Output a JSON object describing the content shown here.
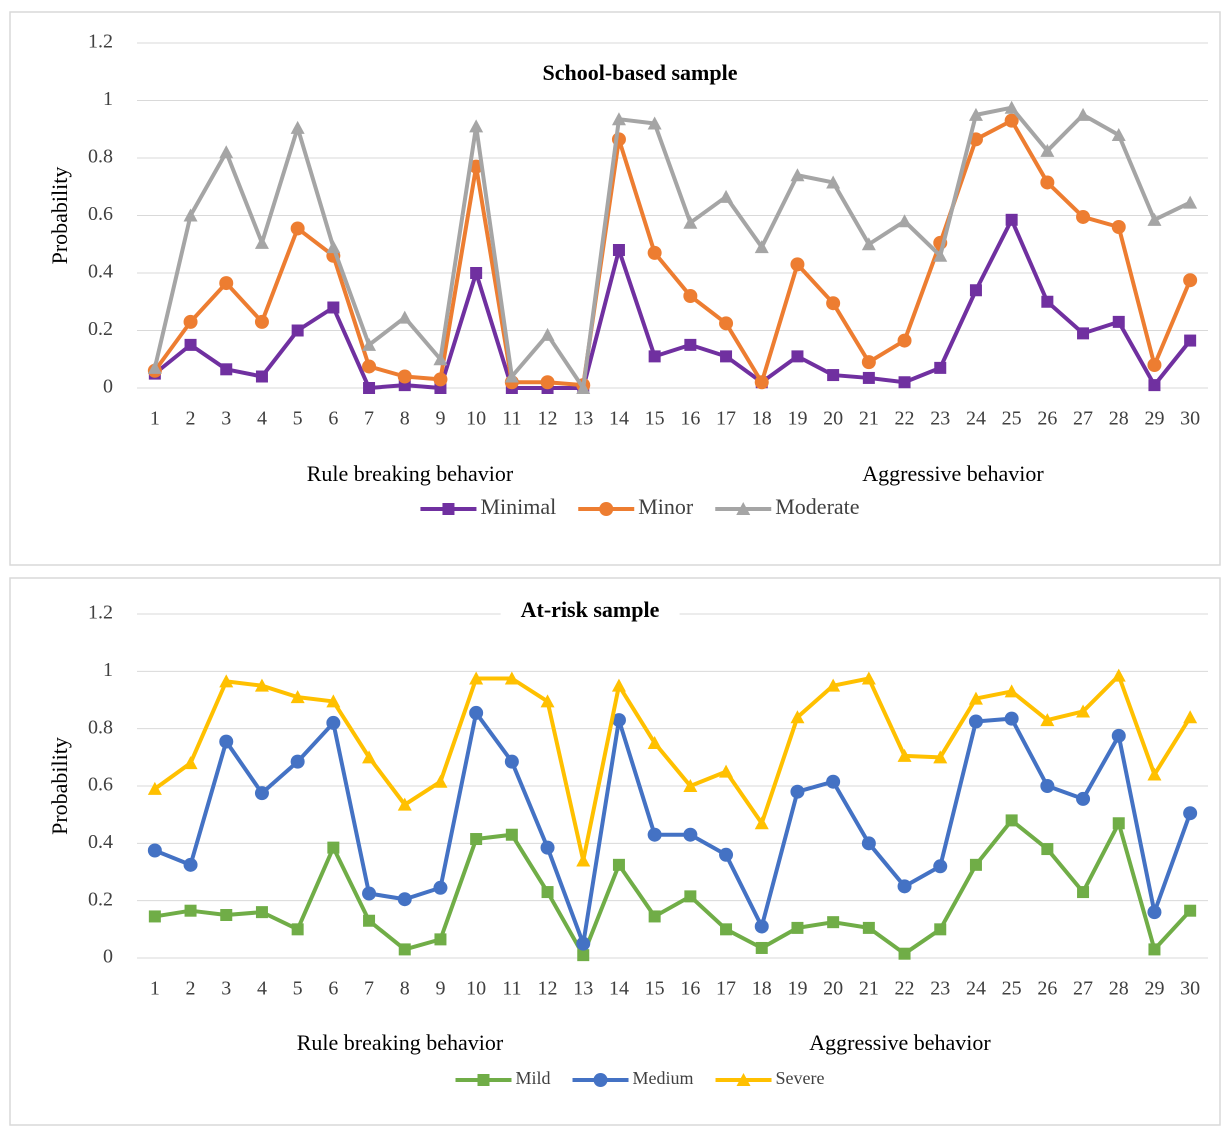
{
  "chart_data": [
    {
      "type": "line",
      "title": "School-based sample",
      "y_label": "Probability",
      "annotations": [
        "Rule breaking behavior",
        "Aggressive behavior"
      ],
      "categories": [
        "1",
        "2",
        "3",
        "4",
        "5",
        "6",
        "7",
        "8",
        "9",
        "10",
        "11",
        "12",
        "13",
        "14",
        "15",
        "16",
        "17",
        "18",
        "19",
        "20",
        "21",
        "22",
        "23",
        "24",
        "25",
        "26",
        "27",
        "28",
        "29",
        "30"
      ],
      "ylim": [
        0,
        1.2
      ],
      "yticks": [
        0,
        0.2,
        0.4,
        0.6,
        0.8,
        1,
        1.2
      ],
      "grid": true,
      "legend": "bottom",
      "series": [
        {
          "name": "Minimal",
          "color": "#7030a0",
          "marker": "square",
          "values": [
            0.05,
            0.15,
            0.065,
            0.04,
            0.2,
            0.28,
            0.0,
            0.01,
            0.0,
            0.4,
            0.0,
            0.0,
            0.0,
            0.48,
            0.11,
            0.15,
            0.11,
            0.02,
            0.11,
            0.045,
            0.035,
            0.02,
            0.07,
            0.34,
            0.585,
            0.3,
            0.19,
            0.23,
            0.01,
            0.165
          ]
        },
        {
          "name": "Minor",
          "color": "#ed7d31",
          "marker": "circle",
          "values": [
            0.06,
            0.23,
            0.365,
            0.23,
            0.555,
            0.46,
            0.075,
            0.04,
            0.03,
            0.77,
            0.02,
            0.02,
            0.01,
            0.865,
            0.47,
            0.32,
            0.225,
            0.02,
            0.43,
            0.295,
            0.09,
            0.165,
            0.505,
            0.865,
            0.93,
            0.715,
            0.595,
            0.56,
            0.08,
            0.375
          ]
        },
        {
          "name": "Moderate",
          "color": "#a5a5a5",
          "marker": "triangle",
          "values": [
            0.07,
            0.6,
            0.82,
            0.505,
            0.905,
            0.49,
            0.15,
            0.245,
            0.1,
            0.91,
            0.04,
            0.185,
            0.0,
            0.935,
            0.92,
            0.575,
            0.665,
            0.49,
            0.74,
            0.715,
            0.5,
            0.58,
            0.46,
            0.95,
            0.975,
            0.825,
            0.95,
            0.88,
            0.585,
            0.645
          ]
        }
      ]
    },
    {
      "type": "line",
      "title": "At-risk sample",
      "y_label": "Probability",
      "annotations": [
        "Rule breaking behavior",
        "Aggressive behavior"
      ],
      "categories": [
        "1",
        "2",
        "3",
        "4",
        "5",
        "6",
        "7",
        "8",
        "9",
        "10",
        "11",
        "12",
        "13",
        "14",
        "15",
        "16",
        "17",
        "18",
        "19",
        "20",
        "21",
        "22",
        "23",
        "24",
        "25",
        "26",
        "27",
        "28",
        "29",
        "30"
      ],
      "ylim": [
        0,
        1.2
      ],
      "yticks": [
        0,
        0.2,
        0.4,
        0.6,
        0.8,
        1,
        1.2
      ],
      "grid": true,
      "legend": "bottom",
      "series": [
        {
          "name": "Mild",
          "color": "#70ad47",
          "marker": "square",
          "values": [
            0.145,
            0.165,
            0.15,
            0.16,
            0.1,
            0.385,
            0.13,
            0.03,
            0.065,
            0.415,
            0.43,
            0.23,
            0.01,
            0.325,
            0.145,
            0.215,
            0.1,
            0.035,
            0.105,
            0.125,
            0.105,
            0.015,
            0.1,
            0.325,
            0.48,
            0.38,
            0.23,
            0.47,
            0.03,
            0.165
          ]
        },
        {
          "name": "Medium",
          "color": "#4472c4",
          "marker": "circle",
          "values": [
            0.375,
            0.325,
            0.755,
            0.575,
            0.685,
            0.82,
            0.225,
            0.205,
            0.245,
            0.855,
            0.685,
            0.385,
            0.05,
            0.83,
            0.43,
            0.43,
            0.36,
            0.11,
            0.58,
            0.615,
            0.4,
            0.25,
            0.32,
            0.825,
            0.835,
            0.6,
            0.555,
            0.775,
            0.16,
            0.505
          ]
        },
        {
          "name": "Severe",
          "color": "#ffc000",
          "marker": "triangle",
          "values": [
            0.59,
            0.68,
            0.965,
            0.95,
            0.91,
            0.895,
            0.7,
            0.535,
            0.615,
            0.975,
            0.975,
            0.895,
            0.34,
            0.95,
            0.75,
            0.6,
            0.65,
            0.47,
            0.84,
            0.95,
            0.975,
            0.705,
            0.7,
            0.905,
            0.93,
            0.83,
            0.86,
            0.985,
            0.64,
            0.84
          ]
        }
      ]
    }
  ]
}
